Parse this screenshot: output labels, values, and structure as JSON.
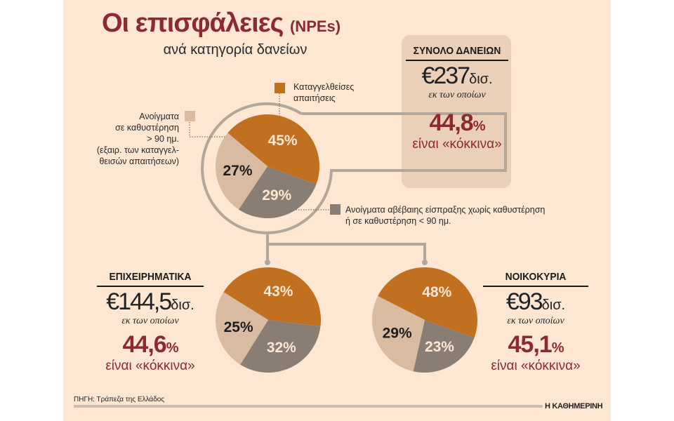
{
  "header": {
    "title": "Οι επισφάλειες",
    "title_suffix": "(NPEs)",
    "subtitle": "ανά κατηγορία δανείων"
  },
  "total": {
    "heading": "ΣΥΝΟΛΟ ΔΑΝΕΙΩΝ",
    "amount": "€237",
    "unit": "δισ.",
    "of_which": "εκ των οποίων",
    "npe_value": "44,8",
    "npe_pct_sign": "%",
    "npe_text": "είναι «κόκκινα»"
  },
  "business": {
    "heading": "ΕΠΙΧΕΙΡΗΜΑΤΙΚΑ",
    "amount": "€144,5",
    "unit": "δισ.",
    "of_which": "εκ των οποίων",
    "npe_value": "44,6",
    "npe_pct_sign": "%",
    "npe_text": "είναι «κόκκινα»"
  },
  "households": {
    "heading": "ΝΟΙΚΟΚΥΡΙΑ",
    "amount": "€93",
    "unit": "δισ.",
    "of_which": "εκ των οποίων",
    "npe_value": "45,1",
    "npe_pct_sign": "%",
    "npe_text": "είναι «κόκκινα»"
  },
  "legend": {
    "denounced": [
      "Καταγγελθείσες",
      "απαιτήσεις"
    ],
    "overdue90": [
      "Ανοίγματα",
      "σε καθυστέρηση",
      "> 90 ημ.",
      "(εξαιρ. των καταγγελ-",
      "θεισών απαιτήσεων)"
    ],
    "unlikely_to_pay": [
      "Ανοίγματα αβέβαιης είσπραξης χωρίς καθυστέρηση",
      "ή σε καθυστέρηση < 90 ημ."
    ]
  },
  "footer": {
    "source": "ΠΗΓΗ: Τράπεζα της Ελλάδος",
    "brand": "Η ΚΑΘΗΜΕΡΙΝΗ"
  },
  "colors": {
    "background": "#fde6d2",
    "denounced": "#c0701e",
    "unlikely_to_pay": "#8a7d74",
    "overdue90": "#d8bba0",
    "accent_red": "#8b2a33"
  },
  "chart_data": [
    {
      "type": "pie",
      "title": "ΣΥΝΟΛΟ ΔΑΝΕΙΩΝ",
      "categories": [
        "Καταγγελθείσες απαιτήσεις",
        "Ανοίγματα αβέβαιης είσπραξης χωρίς καθυστέρηση ή σε καθυστέρηση < 90 ημ.",
        "Ανοίγματα σε καθυστέρηση > 90 ημ."
      ],
      "values": [
        45,
        29,
        27
      ],
      "labels": [
        "45%",
        "29%",
        "27%"
      ]
    },
    {
      "type": "pie",
      "title": "ΕΠΙΧΕΙΡΗΜΑΤΙΚΑ",
      "categories": [
        "Καταγγελθείσες απαιτήσεις",
        "Ανοίγματα αβέβαιης είσπραξης χωρίς καθυστέρηση ή σε καθυστέρηση < 90 ημ.",
        "Ανοίγματα σε καθυστέρηση > 90 ημ."
      ],
      "values": [
        43,
        32,
        25
      ],
      "labels": [
        "43%",
        "32%",
        "25%"
      ]
    },
    {
      "type": "pie",
      "title": "ΝΟΙΚΟΚΥΡΙΑ",
      "categories": [
        "Καταγγελθείσες απαιτήσεις",
        "Ανοίγματα αβέβαιης είσπραξης χωρίς καθυστέρηση ή σε καθυστέρηση < 90 ημ.",
        "Ανοίγματα σε καθυστέρηση > 90 ημ."
      ],
      "values": [
        48,
        23,
        29
      ],
      "labels": [
        "48%",
        "23%",
        "29%"
      ]
    }
  ]
}
